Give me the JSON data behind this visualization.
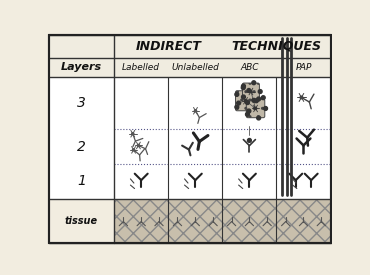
{
  "title_left": "INDIRECT",
  "title_right": "TECHNIQUES",
  "col_headers": [
    "Labelled",
    "Unlabelled",
    "ABC",
    "PAP"
  ],
  "left_label": "Layers",
  "row_labels": [
    "3",
    "2",
    "1",
    "tissue"
  ],
  "bg_color": "#f2ede0",
  "white_cell": "#ffffff",
  "header_bg": "#f2ede0",
  "grid_color": "#333333",
  "tissue_bg": "#c8bfac",
  "dot_line_color": "#555588",
  "ab_color": "#222222",
  "star_color": "#555555",
  "abc_dot_color": "#333333",
  "abc_blob_color": "#aaaaaa",
  "pap_line_color": "#333333"
}
